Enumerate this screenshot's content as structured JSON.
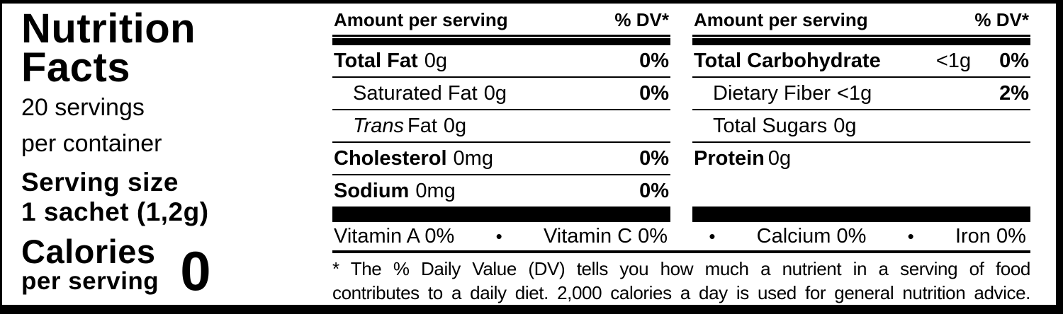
{
  "colors": {
    "ink": "#000000",
    "background": "#ffffff"
  },
  "left": {
    "title_line1": "Nutrition",
    "title_line2": "Facts",
    "servings_line1": "20 servings",
    "servings_line2": "per container",
    "serving_size_label": "Serving size",
    "serving_size_value": "1 sachet (1,2g)",
    "calories_label": "Calories",
    "calories_sub": "per serving",
    "calories_value": "0"
  },
  "columns": [
    {
      "header": {
        "amount": "Amount per serving",
        "dv": "% DV*"
      },
      "rows": [
        {
          "name": "Total Fat",
          "value": "0g",
          "dv": "0%"
        },
        {
          "name": "Saturated Fat",
          "value": "0g",
          "dv": "0%"
        },
        {
          "name_italic": "Trans",
          "name": "Fat",
          "value": "0g",
          "dv": ""
        },
        {
          "name": "Cholesterol",
          "value": "0mg",
          "dv": "0%"
        },
        {
          "name": "Sodium",
          "value": "0mg",
          "dv": "0%"
        }
      ]
    },
    {
      "header": {
        "amount": "Amount per serving",
        "dv": "% DV*"
      },
      "rows": [
        {
          "name": "Total Carbohydrate",
          "value": "<1g",
          "dv": "0%"
        },
        {
          "name": "Dietary Fiber",
          "value": "<1g",
          "dv": "2%"
        },
        {
          "name": "Total Sugars",
          "value": "0g",
          "dv": ""
        },
        {
          "name": "Protein",
          "value": "0g",
          "dv": ""
        }
      ]
    }
  ],
  "micronutrients": {
    "separator": "•",
    "items": [
      {
        "label": "Vitamin A 0%"
      },
      {
        "label": "Vitamin C 0%"
      },
      {
        "label": "Calcium  0%"
      },
      {
        "label": "Iron 0%"
      }
    ]
  },
  "footnote": {
    "line1": "* The % Daily Value (DV) tells you how much a nutrient in a serving of food",
    "line2": "contributes to a daily diet. 2,000 calories a day is used for general nutrition advice."
  }
}
